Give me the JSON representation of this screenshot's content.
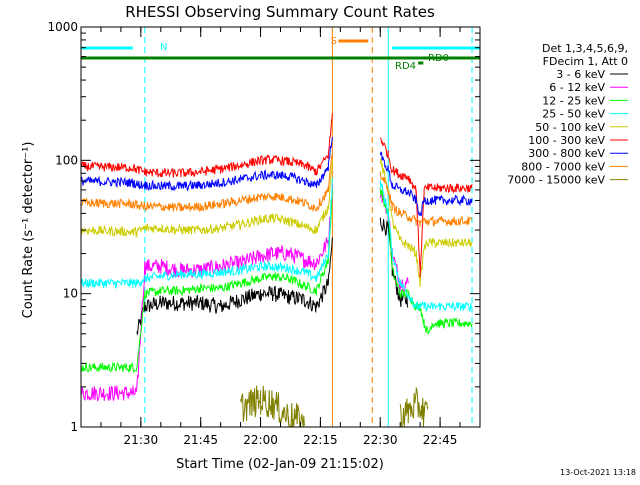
{
  "title": "RHESSI Observing Summary Count Rates",
  "footer_stamp": "13-Oct-2021 13:18",
  "chart_data": {
    "type": "line",
    "title": "RHESSI Observing Summary Count Rates",
    "xlabel": "Start Time (02-Jan-09 21:15:02)",
    "ylabel": "Count Rate (s⁻¹ detector⁻¹)",
    "x_unit": "minutes after 21:15:02",
    "xlim": [
      0,
      100
    ],
    "ylim": [
      1,
      1000
    ],
    "y_scale": "log",
    "x_ticks": [
      {
        "x": 15,
        "label": "21:30"
      },
      {
        "x": 30,
        "label": "21:45"
      },
      {
        "x": 45,
        "label": "22:00"
      },
      {
        "x": 60,
        "label": "22:15"
      },
      {
        "x": 75,
        "label": "22:30"
      },
      {
        "x": 90,
        "label": "22:45"
      }
    ],
    "y_ticks": [
      {
        "y": 1,
        "label": "1"
      },
      {
        "y": 10,
        "label": "10"
      },
      {
        "y": 100,
        "label": "100"
      },
      {
        "y": 1000,
        "label": "1000"
      }
    ],
    "legend_header": [
      "Det 1,3,4,5,6,9,",
      "FDecim 1, Att 0"
    ],
    "legend_position": "right",
    "x": [
      0,
      13,
      14,
      16,
      20,
      25,
      30,
      35,
      40,
      45,
      48,
      52,
      56,
      59,
      62,
      63,
      63.5,
      73,
      75,
      77,
      78,
      80,
      82,
      84,
      85,
      86,
      87,
      88,
      90,
      93,
      98
    ],
    "series": [
      {
        "name": "3 - 6 keV",
        "color": "#000000",
        "values": [
          null,
          null,
          5,
          8,
          8.5,
          8.5,
          8.5,
          8,
          9,
          10,
          10,
          9.5,
          9,
          8,
          12,
          25,
          null,
          null,
          35,
          30,
          15,
          9,
          9,
          null,
          null,
          null,
          null,
          null,
          null,
          null,
          null
        ]
      },
      {
        "name": "6 - 12 keV",
        "color": "#ff00ff",
        "values": [
          1.8,
          1.8,
          1.8,
          16,
          16,
          15,
          15,
          16,
          17,
          19,
          20,
          20,
          18,
          17,
          25,
          60,
          null,
          null,
          60,
          40,
          20,
          12,
          12,
          null,
          null,
          null,
          null,
          null,
          null,
          null,
          null
        ]
      },
      {
        "name": "12 - 25 keV",
        "color": "#00ff00",
        "values": [
          2.8,
          2.8,
          2.8,
          10,
          10.5,
          10.5,
          11,
          11,
          12,
          13,
          13.5,
          13,
          11.5,
          10.5,
          18,
          60,
          null,
          null,
          60,
          40,
          15,
          10,
          10,
          8,
          8,
          6,
          5,
          6,
          6,
          6,
          6
        ]
      },
      {
        "name": "25 - 50 keV",
        "color": "#00ffff",
        "values": [
          12,
          12,
          12,
          13,
          13.5,
          14,
          14,
          14.5,
          15,
          16,
          16,
          15.5,
          14.5,
          13,
          20,
          70,
          null,
          null,
          70,
          40,
          20,
          12,
          10,
          8,
          8,
          8,
          8,
          8,
          8,
          8,
          8
        ]
      },
      {
        "name": "50 - 100 keV",
        "color": "#cccc00",
        "values": [
          30,
          29,
          29,
          31,
          31,
          30,
          30,
          31,
          33,
          36,
          37,
          35,
          32,
          30,
          45,
          100,
          null,
          null,
          100,
          60,
          35,
          25,
          23,
          20,
          12,
          22,
          24,
          24,
          24,
          24,
          24
        ]
      },
      {
        "name": "100 - 300 keV",
        "color": "#ff0000",
        "values": [
          90,
          88,
          85,
          82,
          80,
          80,
          82,
          86,
          92,
          100,
          101,
          98,
          92,
          82,
          110,
          220,
          null,
          null,
          150,
          110,
          85,
          78,
          75,
          60,
          14,
          60,
          62,
          62,
          62,
          62,
          62
        ]
      },
      {
        "name": "300 - 800 keV",
        "color": "#0000ff",
        "values": [
          70,
          68,
          66,
          65,
          64,
          64,
          65,
          68,
          72,
          77,
          78,
          76,
          70,
          64,
          90,
          160,
          null,
          null,
          110,
          85,
          65,
          60,
          58,
          50,
          38,
          50,
          50,
          50,
          50,
          50,
          50
        ]
      },
      {
        "name": "800 - 7000 keV",
        "color": "#ff8000",
        "values": [
          48,
          47,
          46,
          45,
          45,
          44,
          45,
          47,
          50,
          53,
          54,
          52,
          48,
          44,
          60,
          110,
          null,
          null,
          80,
          60,
          45,
          40,
          38,
          35,
          34,
          35,
          35,
          35,
          35,
          35,
          35
        ]
      },
      {
        "name": "7000 - 15000 keV",
        "color": "#808000",
        "values": [
          null,
          null,
          null,
          null,
          null,
          null,
          null,
          null,
          1.4,
          1.6,
          1.5,
          1.2,
          1.1,
          null,
          null,
          null,
          null,
          null,
          null,
          null,
          null,
          1.2,
          1.3,
          1.5,
          1.4,
          1.3,
          1.2,
          null,
          null,
          null,
          null
        ]
      }
    ],
    "state_bars": [
      {
        "label": "N",
        "color": "#00ffff",
        "spans": [
          [
            0,
            13
          ],
          [
            78,
            100
          ]
        ]
      },
      {
        "label": "S",
        "color": "#ff8000",
        "spans": [
          [
            64.5,
            72
          ]
        ]
      },
      {
        "label": "RD0",
        "color": "#008000",
        "spans": [
          [
            0,
            100
          ]
        ]
      },
      {
        "label": "RD4",
        "color": "#008000",
        "spans": [
          [
            84.5,
            85.8
          ]
        ]
      }
    ],
    "vertical_markers": [
      {
        "x": 16,
        "color": "#00ffff",
        "style": "dashed"
      },
      {
        "x": 63,
        "color": "#ff8000",
        "style": "solid"
      },
      {
        "x": 73,
        "color": "#ff8000",
        "style": "dashed"
      },
      {
        "x": 77,
        "color": "#00ffff",
        "style": "solid"
      },
      {
        "x": 98,
        "color": "#00ffff",
        "style": "dashed"
      }
    ]
  }
}
